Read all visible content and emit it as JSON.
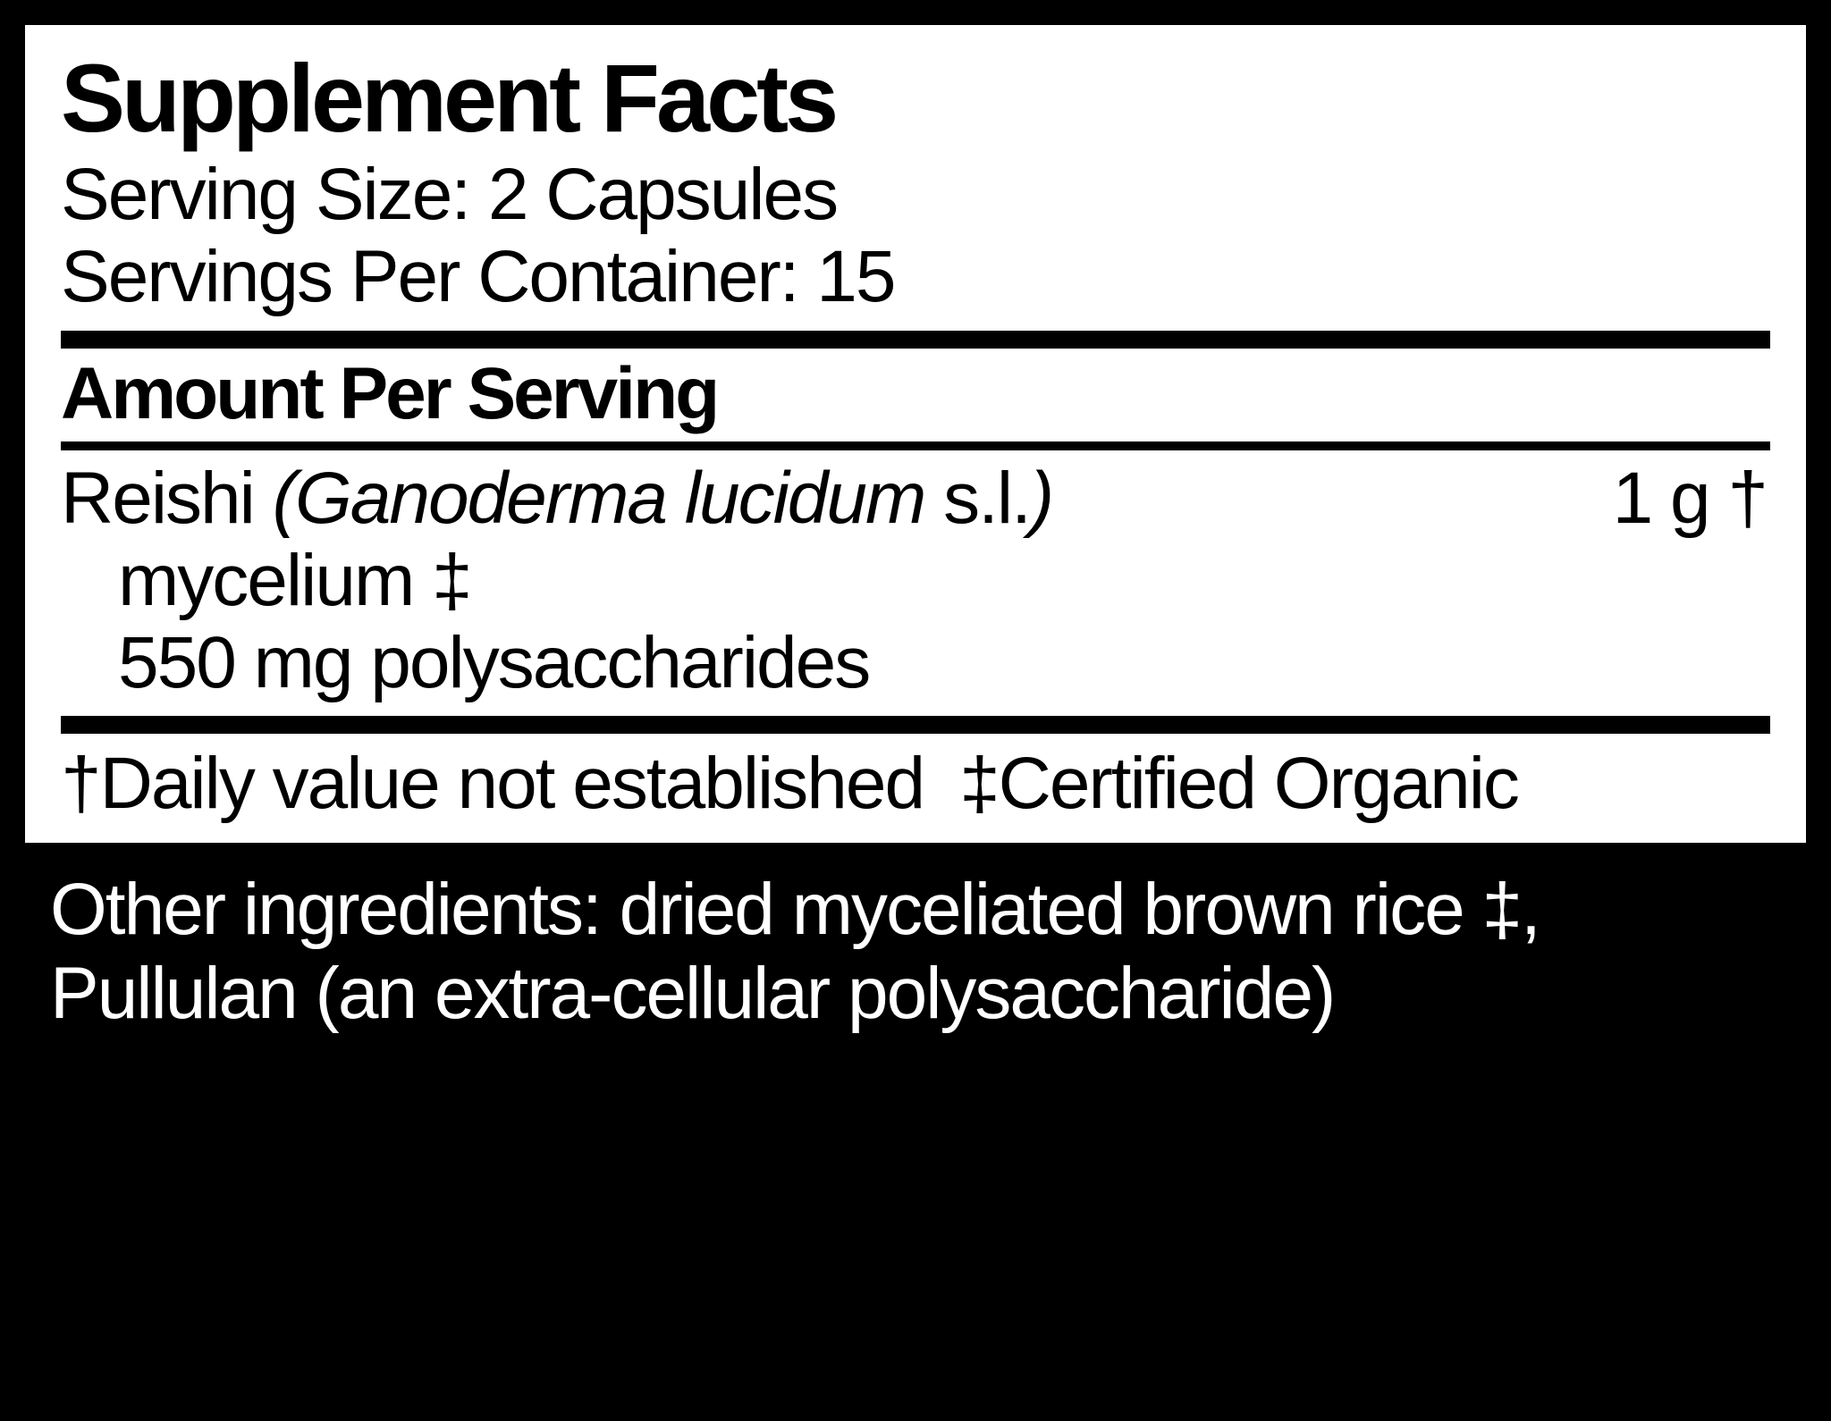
{
  "colors": {
    "background": "#000000",
    "panel": "#ffffff",
    "text": "#000000",
    "footer_text": "#ffffff"
  },
  "title": "Supplement Facts",
  "serving_size": "Serving Size: 2 Capsules",
  "servings_per_container": "Servings Per Container: 15",
  "amount_header": "Amount Per Serving",
  "ingredient": {
    "name_plain_1": "Reishi ",
    "name_italic": "(Ganoderma lucidum ",
    "name_plain_2": "s.l.",
    "name_italic_2": ")",
    "sub1": "mycelium ‡",
    "sub2": "550 mg polysaccharides",
    "amount": "1 g †"
  },
  "footnote1": "†Daily value not established",
  "footnote2": "‡Certified Organic",
  "other_ingredients": "Other ingredients: dried myceliated brown rice ‡, Pullulan (an extra-cellular polysaccharide)"
}
